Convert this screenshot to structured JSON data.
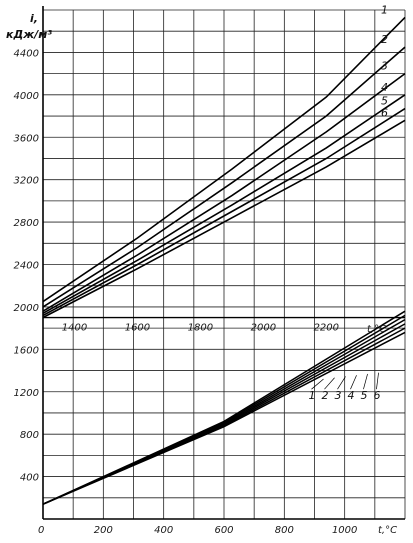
{
  "chart_data": {
    "type": "line",
    "ylabel_top": "i,",
    "ylabel_unit": "кДж/м³",
    "ylim": [
      0,
      4800
    ],
    "yticks": [
      400,
      800,
      1200,
      1600,
      2000,
      2400,
      2800,
      3200,
      3600,
      4000,
      4400
    ],
    "lower_axis": {
      "xlabel": "t,°C",
      "xlim": [
        0,
        1200
      ],
      "xticks": [
        200,
        400,
        600,
        800,
        1000
      ],
      "zero_label": "0"
    },
    "upper_axis": {
      "xlabel": "t,°C",
      "xlim": [
        1300,
        2450
      ],
      "xticks": [
        1400,
        1600,
        1800,
        2000,
        2200
      ]
    },
    "series": [
      {
        "name": "1",
        "lower": {
          "x": [
            0,
            600,
            1200
          ],
          "y": [
            140,
            920,
            1960
          ]
        },
        "upper": {
          "x": [
            1300,
            1600,
            1900,
            2200,
            2450
          ],
          "y": [
            2050,
            2650,
            3300,
            3980,
            4730
          ]
        }
      },
      {
        "name": "2",
        "lower": {
          "x": [
            0,
            600,
            1200
          ],
          "y": [
            140,
            910,
            1920
          ]
        },
        "upper": {
          "x": [
            1300,
            1600,
            1900,
            2200,
            2450
          ],
          "y": [
            2000,
            2560,
            3170,
            3800,
            4450
          ]
        }
      },
      {
        "name": "3",
        "lower": {
          "x": [
            0,
            600,
            1200
          ],
          "y": [
            140,
            900,
            1880
          ]
        },
        "upper": {
          "x": [
            1300,
            1600,
            1900,
            2200,
            2450
          ],
          "y": [
            1960,
            2490,
            3050,
            3650,
            4200
          ]
        }
      },
      {
        "name": "4",
        "lower": {
          "x": [
            0,
            600,
            1200
          ],
          "y": [
            140,
            890,
            1840
          ]
        },
        "upper": {
          "x": [
            1300,
            1600,
            1900,
            2200,
            2450
          ],
          "y": [
            1940,
            2440,
            2960,
            3500,
            4000
          ]
        }
      },
      {
        "name": "5",
        "lower": {
          "x": [
            0,
            600,
            1200
          ],
          "y": [
            140,
            880,
            1800
          ]
        },
        "upper": {
          "x": [
            1300,
            1600,
            1900,
            2200,
            2450
          ],
          "y": [
            1920,
            2400,
            2900,
            3400,
            3870
          ]
        }
      },
      {
        "name": "6",
        "lower": {
          "x": [
            0,
            600,
            1200
          ],
          "y": [
            140,
            870,
            1760
          ]
        },
        "upper": {
          "x": [
            1300,
            1600,
            1900,
            2200,
            2450
          ],
          "y": [
            1900,
            2360,
            2840,
            3320,
            3760
          ]
        }
      }
    ],
    "grid": true
  }
}
